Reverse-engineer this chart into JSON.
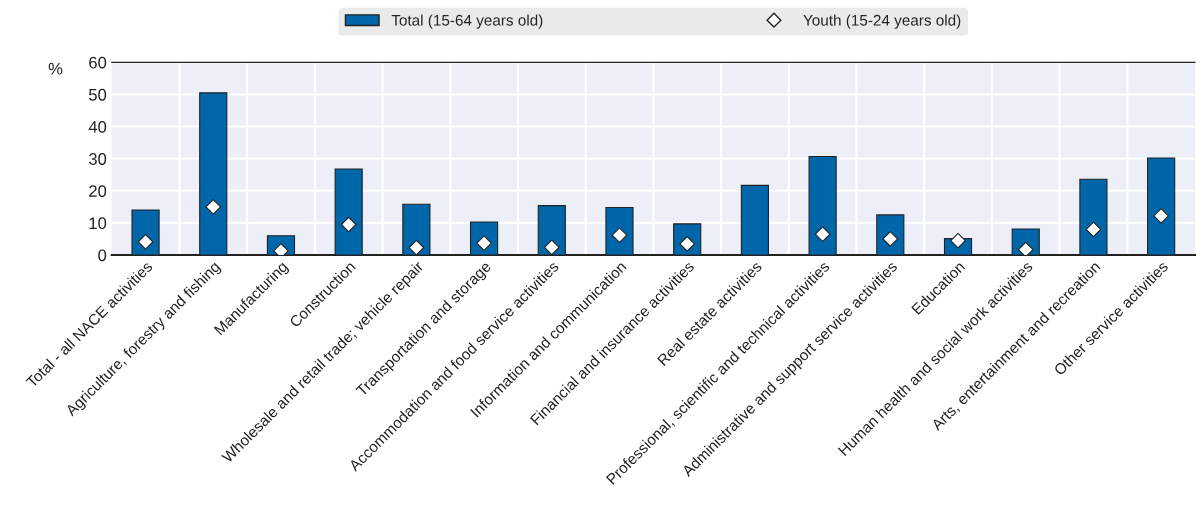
{
  "chart_data": {
    "type": "bar",
    "ylabel": "%",
    "categories": [
      "Total - all NACE activities",
      "Agriculture, forestry and fishing",
      "Manufacturing",
      "Construction",
      "Wholesale and retail trade; vehicle repair",
      "Transportation and storage",
      "Accommodation and food service activities",
      "Information and communication",
      "Financial and insurance activities",
      "Real estate activities",
      "Professional, scientific and technical activities",
      "Administrative and support service activities",
      "Education",
      "Human health and social work activities",
      "Arts, entertainment and recreation",
      "Other service activities"
    ],
    "series": [
      {
        "name": "Total (15-64 years old)",
        "color": "#0066aa",
        "values": [
          14,
          50.5,
          6,
          26.8,
          15.8,
          10.3,
          15.4,
          14.8,
          9.7,
          21.7,
          30.7,
          12.5,
          5.1,
          8.1,
          23.6,
          30.2
        ]
      },
      {
        "name": "Youth (15-24 years old)",
        "type": "scatter",
        "marker": "diamond",
        "color": "#ffffff",
        "values": [
          4.1,
          15,
          1.3,
          9.5,
          2.3,
          3.7,
          2.4,
          6.2,
          3.5,
          null,
          6.5,
          5,
          4.5,
          1.7,
          8,
          12.2
        ]
      }
    ],
    "ylim": [
      0,
      60
    ],
    "yticks": [
      0,
      10,
      20,
      30,
      40,
      50,
      60
    ],
    "grid": true,
    "legend": "top"
  }
}
